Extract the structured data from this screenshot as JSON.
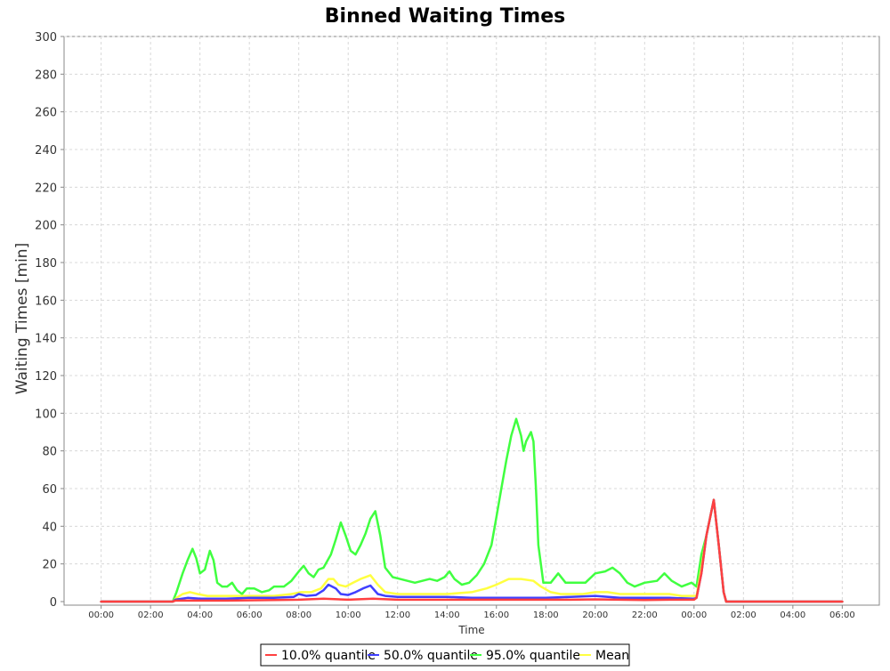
{
  "chart_data": {
    "type": "line",
    "title": "Binned Waiting Times",
    "xlabel": "Time",
    "ylabel": "Waiting Times [min]",
    "ylim": [
      0,
      300
    ],
    "xlim": [
      -1.5,
      31.5
    ],
    "x_unit": "hours from 00:00 (first day)",
    "yticks": [
      0,
      20,
      40,
      60,
      80,
      100,
      120,
      140,
      160,
      180,
      200,
      220,
      240,
      260,
      280,
      300
    ],
    "xticks": [
      {
        "value": 0,
        "label": "00:00"
      },
      {
        "value": 2,
        "label": "02:00"
      },
      {
        "value": 4,
        "label": "04:00"
      },
      {
        "value": 6,
        "label": "06:00"
      },
      {
        "value": 8,
        "label": "08:00"
      },
      {
        "value": 10,
        "label": "10:00"
      },
      {
        "value": 12,
        "label": "12:00"
      },
      {
        "value": 14,
        "label": "14:00"
      },
      {
        "value": 16,
        "label": "16:00"
      },
      {
        "value": 18,
        "label": "18:00"
      },
      {
        "value": 20,
        "label": "20:00"
      },
      {
        "value": 22,
        "label": "22:00"
      },
      {
        "value": 24,
        "label": "00:00"
      },
      {
        "value": 26,
        "label": "02:00"
      },
      {
        "value": 28,
        "label": "04:00"
      },
      {
        "value": 30,
        "label": "06:00"
      }
    ],
    "grid": true,
    "legend_position": "bottom",
    "series": [
      {
        "name": "10.0% quantile",
        "color": "#ff4040",
        "points": [
          [
            0,
            0
          ],
          [
            2.9,
            0
          ],
          [
            3.0,
            0.5
          ],
          [
            5,
            0.5
          ],
          [
            7,
            0.8
          ],
          [
            8,
            1
          ],
          [
            9,
            1.5
          ],
          [
            10,
            1
          ],
          [
            11,
            1.5
          ],
          [
            12,
            1
          ],
          [
            14,
            1
          ],
          [
            16,
            1
          ],
          [
            18,
            1
          ],
          [
            19,
            1
          ],
          [
            20,
            1.2
          ],
          [
            21,
            1
          ],
          [
            22,
            0.8
          ],
          [
            23,
            1
          ],
          [
            24,
            1
          ],
          [
            24.1,
            2
          ],
          [
            24.3,
            15
          ],
          [
            24.5,
            35
          ],
          [
            24.8,
            54
          ],
          [
            25.0,
            30
          ],
          [
            25.2,
            5
          ],
          [
            25.3,
            0
          ],
          [
            30,
            0
          ]
        ]
      },
      {
        "name": "50.0% quantile",
        "color": "#4040ff",
        "points": [
          [
            0,
            0
          ],
          [
            2.9,
            0
          ],
          [
            3.0,
            1
          ],
          [
            3.5,
            2
          ],
          [
            4.0,
            1.5
          ],
          [
            5.0,
            1.5
          ],
          [
            6.0,
            2
          ],
          [
            7.0,
            2
          ],
          [
            7.8,
            2.5
          ],
          [
            8.0,
            4
          ],
          [
            8.3,
            3
          ],
          [
            8.7,
            3.5
          ],
          [
            9.0,
            6
          ],
          [
            9.2,
            9
          ],
          [
            9.5,
            7
          ],
          [
            9.7,
            4
          ],
          [
            10.0,
            3.5
          ],
          [
            10.3,
            5
          ],
          [
            10.6,
            7
          ],
          [
            10.9,
            8.5
          ],
          [
            11.2,
            4
          ],
          [
            11.5,
            3
          ],
          [
            12,
            2.5
          ],
          [
            13,
            2.5
          ],
          [
            14,
            2.5
          ],
          [
            15,
            2
          ],
          [
            16,
            2
          ],
          [
            17,
            2
          ],
          [
            18,
            2
          ],
          [
            19,
            2.5
          ],
          [
            20,
            3
          ],
          [
            21,
            2
          ],
          [
            22,
            2
          ],
          [
            23,
            2
          ],
          [
            24,
            1.5
          ],
          [
            24.1,
            2
          ],
          [
            24.3,
            15
          ],
          [
            24.5,
            35
          ],
          [
            24.8,
            54
          ],
          [
            25.0,
            30
          ],
          [
            25.2,
            5
          ],
          [
            25.3,
            0
          ],
          [
            30,
            0
          ]
        ]
      },
      {
        "name": "95.0% quantile",
        "color": "#40ff40",
        "points": [
          [
            0,
            0
          ],
          [
            2.9,
            0
          ],
          [
            3.05,
            5
          ],
          [
            3.3,
            15
          ],
          [
            3.5,
            22
          ],
          [
            3.7,
            28
          ],
          [
            3.85,
            23
          ],
          [
            4.0,
            15
          ],
          [
            4.2,
            17
          ],
          [
            4.4,
            27
          ],
          [
            4.55,
            22
          ],
          [
            4.7,
            10
          ],
          [
            4.9,
            8
          ],
          [
            5.1,
            8
          ],
          [
            5.3,
            10
          ],
          [
            5.5,
            6
          ],
          [
            5.7,
            4
          ],
          [
            5.9,
            7
          ],
          [
            6.2,
            7
          ],
          [
            6.5,
            5
          ],
          [
            6.8,
            6
          ],
          [
            7.0,
            8
          ],
          [
            7.4,
            8
          ],
          [
            7.7,
            11
          ],
          [
            8.0,
            16
          ],
          [
            8.2,
            19
          ],
          [
            8.4,
            15
          ],
          [
            8.6,
            13
          ],
          [
            8.8,
            17
          ],
          [
            9.0,
            18
          ],
          [
            9.3,
            25
          ],
          [
            9.5,
            33
          ],
          [
            9.7,
            42
          ],
          [
            9.9,
            35
          ],
          [
            10.1,
            27
          ],
          [
            10.3,
            25
          ],
          [
            10.5,
            30
          ],
          [
            10.7,
            36
          ],
          [
            10.9,
            44
          ],
          [
            11.1,
            48
          ],
          [
            11.3,
            35
          ],
          [
            11.5,
            18
          ],
          [
            11.8,
            13
          ],
          [
            12.1,
            12
          ],
          [
            12.4,
            11
          ],
          [
            12.7,
            10
          ],
          [
            13.0,
            11
          ],
          [
            13.3,
            12
          ],
          [
            13.6,
            11
          ],
          [
            13.9,
            13
          ],
          [
            14.1,
            16
          ],
          [
            14.3,
            12
          ],
          [
            14.6,
            9
          ],
          [
            14.9,
            10
          ],
          [
            15.2,
            14
          ],
          [
            15.5,
            20
          ],
          [
            15.8,
            30
          ],
          [
            16.0,
            45
          ],
          [
            16.2,
            60
          ],
          [
            16.4,
            75
          ],
          [
            16.6,
            88
          ],
          [
            16.8,
            97
          ],
          [
            17.0,
            88
          ],
          [
            17.1,
            80
          ],
          [
            17.2,
            85
          ],
          [
            17.4,
            90
          ],
          [
            17.5,
            85
          ],
          [
            17.6,
            60
          ],
          [
            17.7,
            30
          ],
          [
            17.9,
            10
          ],
          [
            18.2,
            10
          ],
          [
            18.5,
            15
          ],
          [
            18.8,
            10
          ],
          [
            19.2,
            10
          ],
          [
            19.6,
            10
          ],
          [
            20.0,
            15
          ],
          [
            20.4,
            16
          ],
          [
            20.7,
            18
          ],
          [
            21.0,
            15
          ],
          [
            21.3,
            10
          ],
          [
            21.6,
            8
          ],
          [
            22.0,
            10
          ],
          [
            22.5,
            11
          ],
          [
            22.8,
            15
          ],
          [
            23.1,
            11
          ],
          [
            23.5,
            8
          ],
          [
            23.9,
            10
          ],
          [
            24.1,
            8
          ],
          [
            24.3,
            25
          ],
          [
            24.5,
            35
          ],
          [
            24.8,
            54
          ],
          [
            25.0,
            30
          ],
          [
            25.2,
            5
          ],
          [
            25.3,
            0
          ],
          [
            30,
            0
          ]
        ]
      },
      {
        "name": "Mean",
        "color": "#ffff40",
        "points": [
          [
            0,
            0
          ],
          [
            2.9,
            0
          ],
          [
            3.05,
            2
          ],
          [
            3.3,
            4
          ],
          [
            3.6,
            5
          ],
          [
            3.9,
            4
          ],
          [
            4.3,
            3
          ],
          [
            4.7,
            3
          ],
          [
            5.2,
            3
          ],
          [
            5.7,
            3
          ],
          [
            6.5,
            3
          ],
          [
            7.0,
            3
          ],
          [
            7.7,
            4
          ],
          [
            8.1,
            5
          ],
          [
            8.5,
            5
          ],
          [
            8.9,
            7
          ],
          [
            9.2,
            12
          ],
          [
            9.4,
            12
          ],
          [
            9.6,
            9
          ],
          [
            9.9,
            8
          ],
          [
            10.2,
            10
          ],
          [
            10.5,
            12
          ],
          [
            10.9,
            14
          ],
          [
            11.2,
            9
          ],
          [
            11.5,
            5
          ],
          [
            12,
            4
          ],
          [
            13,
            4
          ],
          [
            14,
            4
          ],
          [
            15,
            5
          ],
          [
            15.6,
            7
          ],
          [
            16,
            9
          ],
          [
            16.5,
            12
          ],
          [
            17,
            12
          ],
          [
            17.5,
            11
          ],
          [
            17.8,
            8
          ],
          [
            18.2,
            5
          ],
          [
            18.6,
            4
          ],
          [
            19.5,
            4
          ],
          [
            20,
            5
          ],
          [
            20.5,
            5
          ],
          [
            21,
            4
          ],
          [
            22,
            4
          ],
          [
            22.5,
            4
          ],
          [
            23,
            4
          ],
          [
            23.5,
            3
          ],
          [
            24,
            3
          ],
          [
            24.1,
            3
          ],
          [
            24.3,
            18
          ],
          [
            24.5,
            35
          ],
          [
            24.8,
            54
          ],
          [
            25.0,
            30
          ],
          [
            25.2,
            5
          ],
          [
            25.3,
            0
          ],
          [
            30,
            0
          ]
        ]
      }
    ]
  }
}
